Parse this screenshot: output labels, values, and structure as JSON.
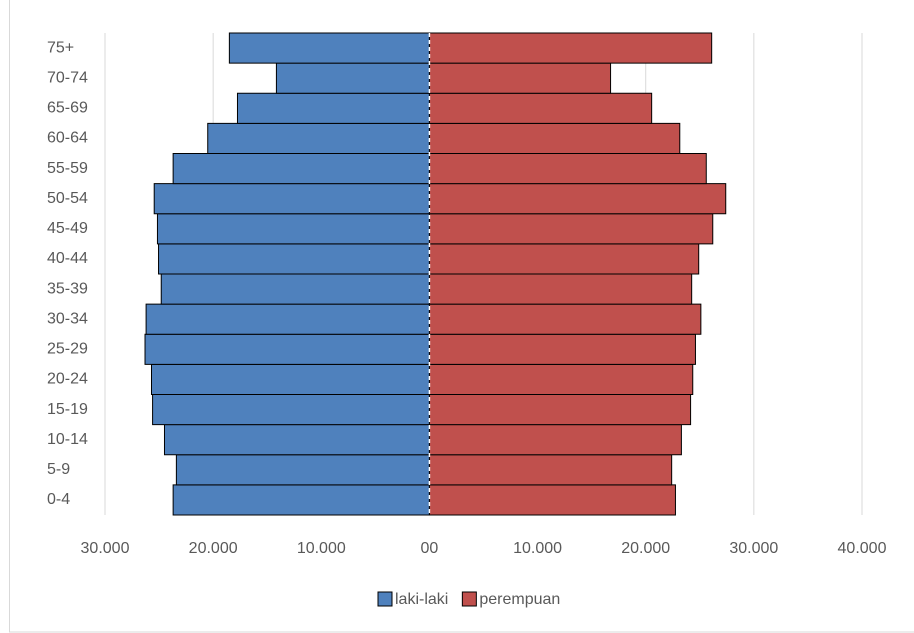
{
  "chart_data": {
    "type": "pyramid",
    "categories": [
      "0-4",
      "5-9",
      "10-14",
      "15-19",
      "20-24",
      "25-29",
      "30-34",
      "35-39",
      "40-44",
      "45-49",
      "50-54",
      "55-59",
      "60-64",
      "65-69",
      "70-74",
      "75+"
    ],
    "series": [
      {
        "name": "laki-laki",
        "color": "#4f81bd",
        "values": [
          -23700,
          -23400,
          -24500,
          -25600,
          -25700,
          -26300,
          -26200,
          -24800,
          -25050,
          -25150,
          -25450,
          -23700,
          -20500,
          -17750,
          -14150,
          -18500
        ]
      },
      {
        "name": "perempuan",
        "color": "#c0504d",
        "values": [
          22750,
          22400,
          23300,
          24150,
          24350,
          24600,
          25100,
          24250,
          24900,
          26200,
          27400,
          25600,
          23150,
          20550,
          16750,
          26100
        ]
      }
    ],
    "xlim": [
      -30000,
      40000
    ],
    "xticks": [
      {
        "value": -30000,
        "label": "30.000"
      },
      {
        "value": -20000,
        "label": "20.000"
      },
      {
        "value": -10000,
        "label": "10.000"
      },
      {
        "value": 0,
        "label": "00"
      },
      {
        "value": 10000,
        "label": "10.000"
      },
      {
        "value": 20000,
        "label": "20.000"
      },
      {
        "value": 30000,
        "label": "30.000"
      },
      {
        "value": 40000,
        "label": "40.000"
      }
    ],
    "grid": true,
    "legend": "bottom"
  }
}
